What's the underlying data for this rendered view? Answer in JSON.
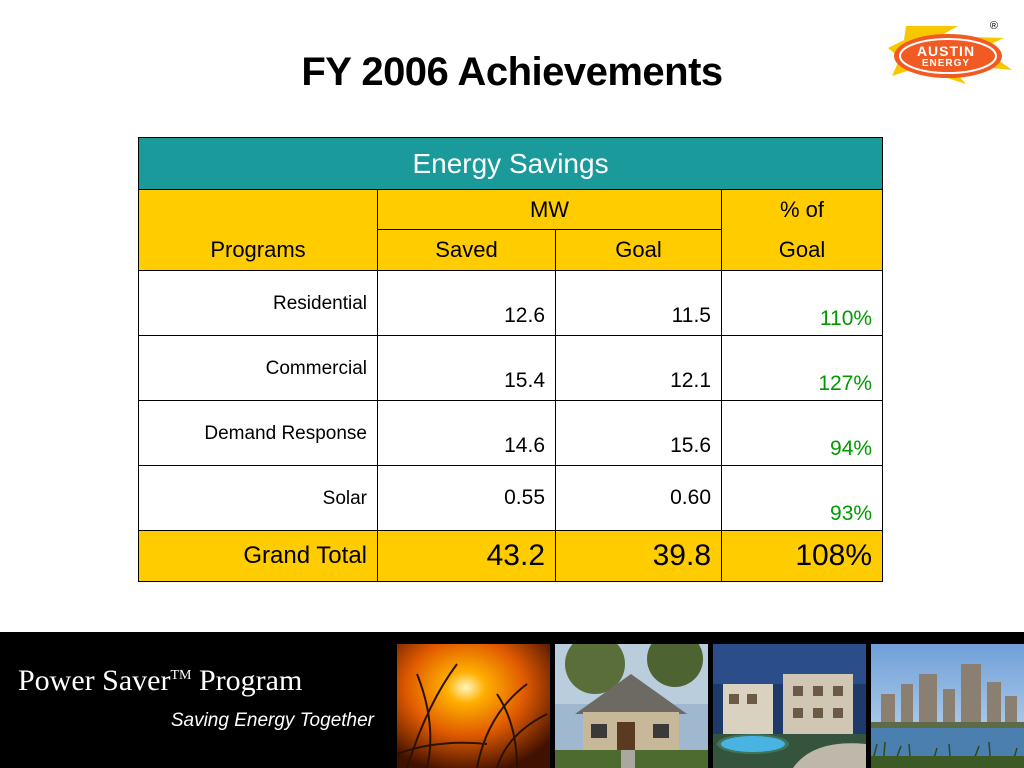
{
  "title": "FY 2006 Achievements",
  "logo": {
    "line1": "AUSTIN",
    "line2": "ENERGY",
    "registered": "®"
  },
  "table": {
    "heading": "Energy Savings",
    "header": {
      "programs": "Programs",
      "mw": "MW",
      "saved": "Saved",
      "goal": "Goal",
      "pct_line1": "% of",
      "pct_line2": "Goal"
    },
    "rows": [
      {
        "program": "Residential",
        "saved": "12.6",
        "goal": "11.5",
        "pct": "110%"
      },
      {
        "program": "Commercial",
        "saved": "15.4",
        "goal": "12.1",
        "pct": "127%"
      },
      {
        "program": "Demand Response",
        "saved": "14.6",
        "goal": "15.6",
        "pct": "94%"
      },
      {
        "program": "Solar",
        "saved": "0.55",
        "goal": "0.60",
        "pct": "93%"
      }
    ],
    "total": {
      "label": "Grand Total",
      "saved": "43.2",
      "goal": "39.8",
      "pct": "108%"
    }
  },
  "footer": {
    "title_pre": "Power Saver",
    "trademark": "TM",
    "title_post": "Program",
    "subtitle": "Saving Energy Together"
  },
  "colors": {
    "teal": "#1a9a9a",
    "yellow": "#ffcc00",
    "green_text": "#009900",
    "logo_orange": "#f15a22"
  },
  "photos": [
    "sunset-grass-photo",
    "house-photo",
    "apartments-photo",
    "city-skyline-photo"
  ]
}
